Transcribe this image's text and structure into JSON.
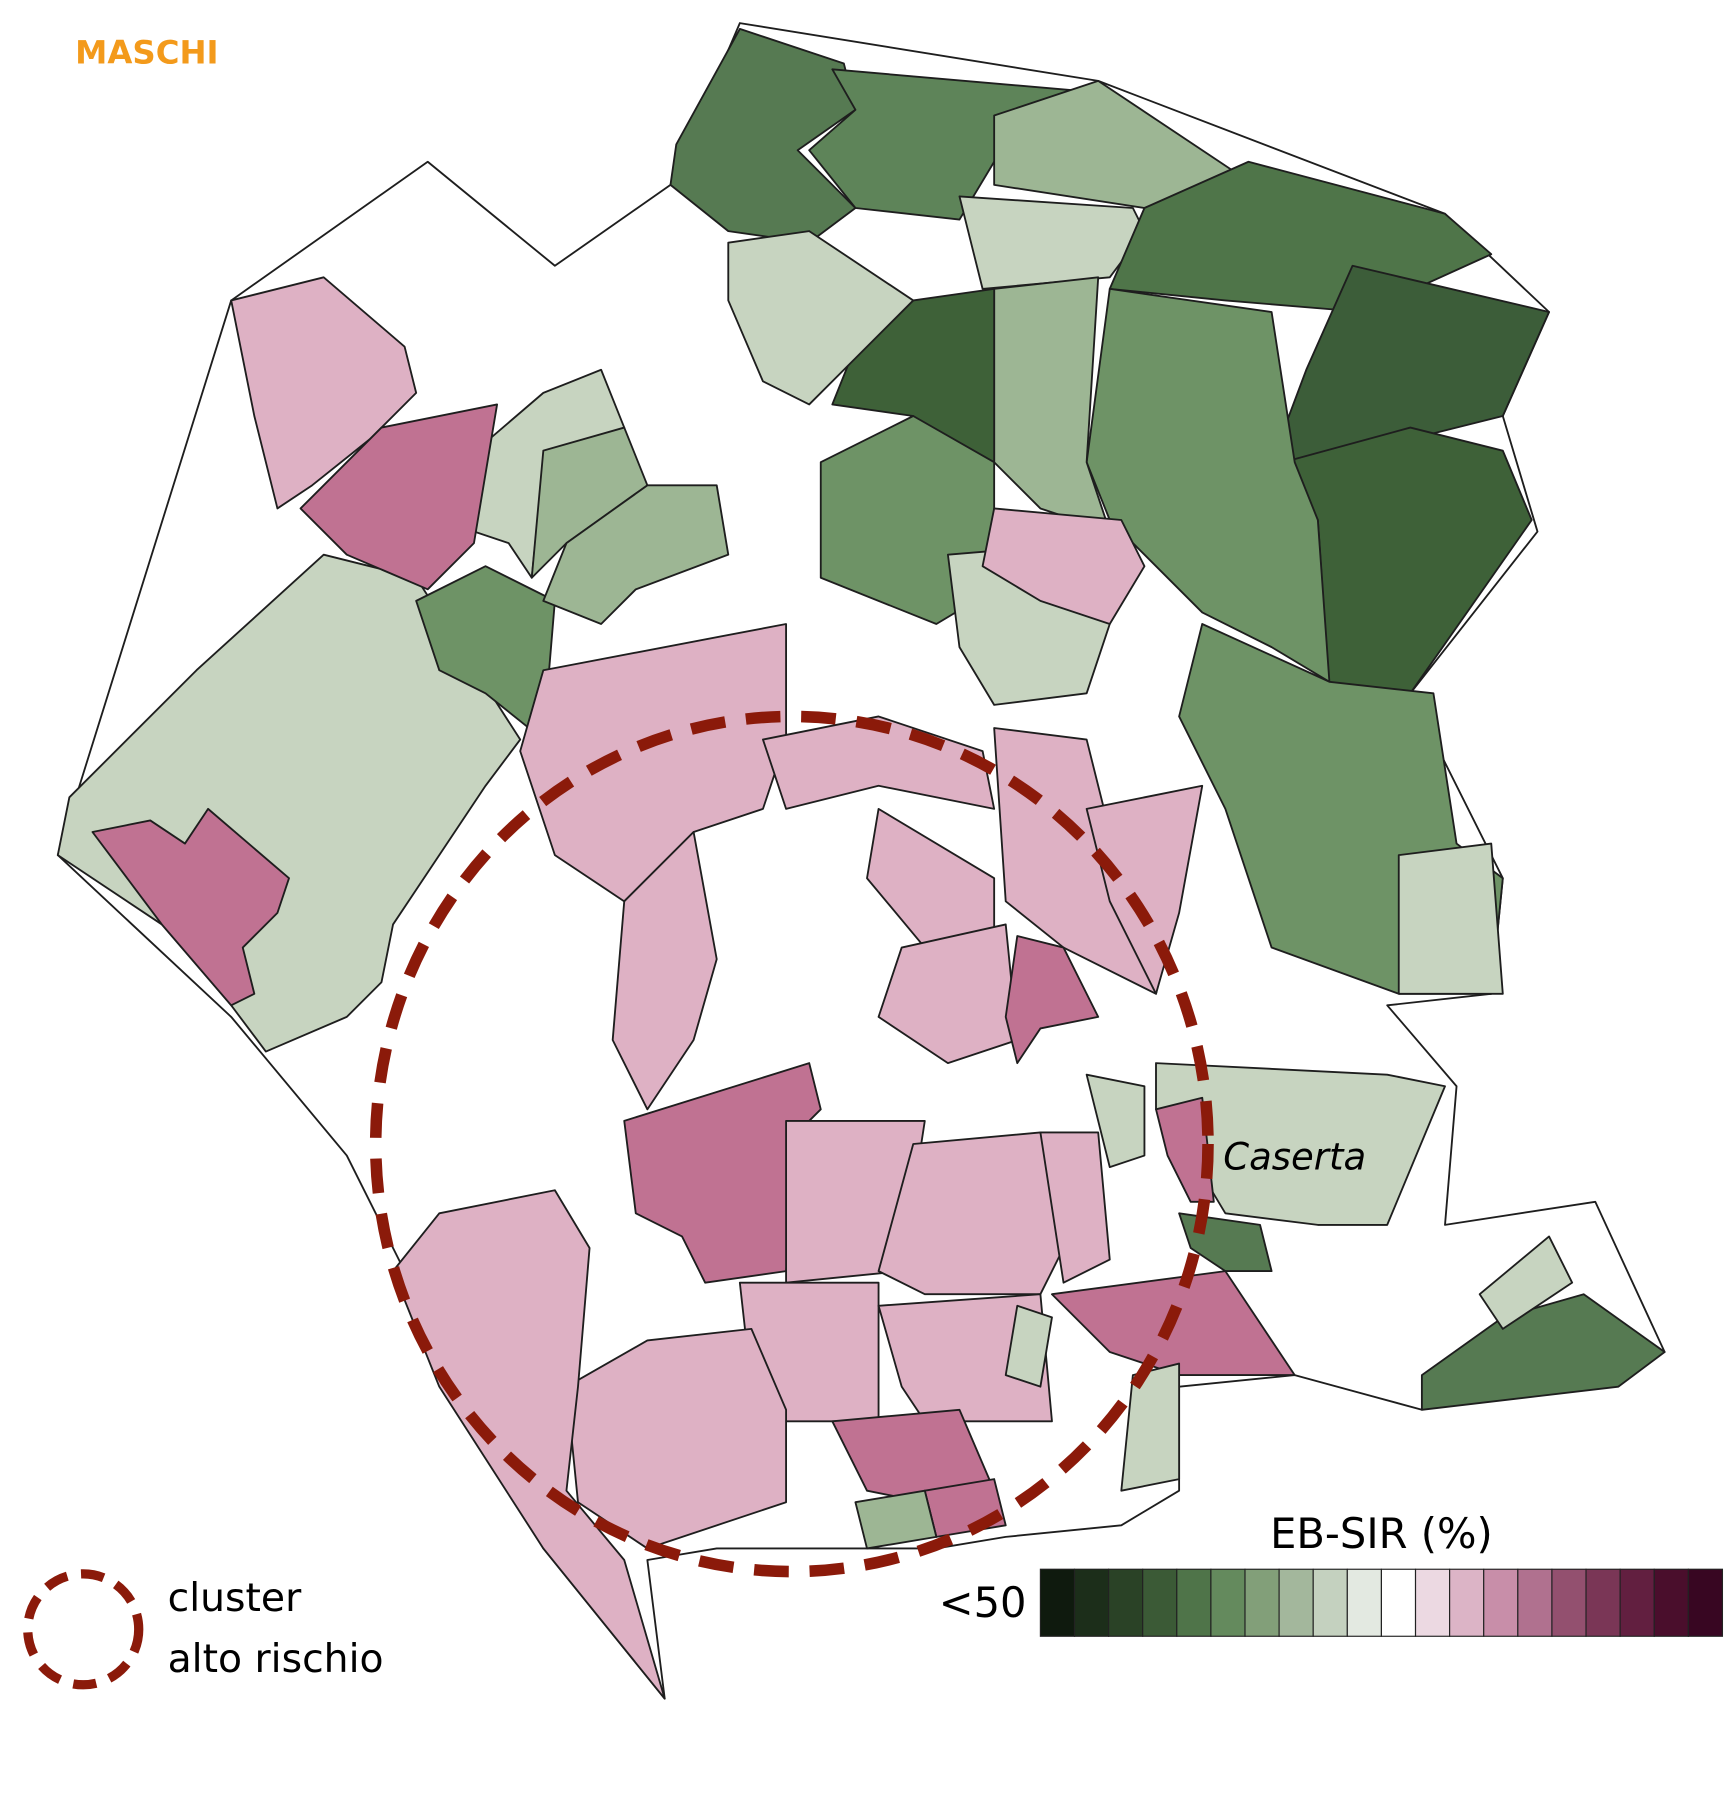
{
  "title": "MASCHI",
  "map": {
    "city_label": "Caserta"
  },
  "legend": {
    "title": "EB-SIR (%)",
    "low_label": "<50",
    "colors": [
      "#0f1a0e",
      "#1c2e1a",
      "#2a4226",
      "#3b5a36",
      "#4f7449",
      "#648a5d",
      "#829f79",
      "#a3b79c",
      "#c4d1bf",
      "#e3e9e1",
      "#ffffff",
      "#ecd9e2",
      "#dcb4c6",
      "#c88ea9",
      "#b0718f",
      "#93506f",
      "#7a3656",
      "#621f40",
      "#4a0e2c",
      "#380622"
    ],
    "cluster_lines": [
      "cluster",
      "alto rischio"
    ]
  }
}
